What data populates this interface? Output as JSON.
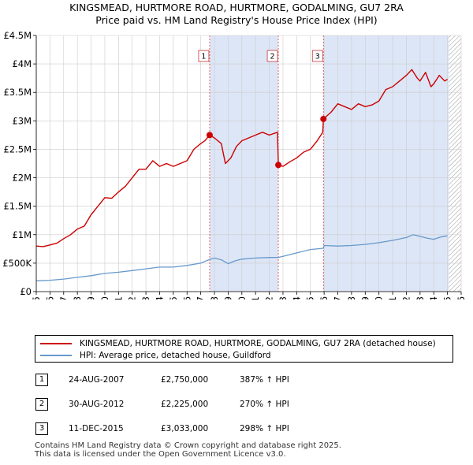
{
  "title": "KINGSMEAD, HURTMORE ROAD, HURTMORE, GODALMING, GU7 2RA",
  "subtitle": "Price paid vs. HM Land Registry's House Price Index (HPI)",
  "legend": {
    "property_label": "KINGSMEAD, HURTMORE ROAD, HURTMORE, GODALMING, GU7 2RA (detached house)",
    "hpi_label": "HPI: Average price, detached house, Guildford"
  },
  "sales": [
    {
      "num": "1",
      "date": "24-AUG-2007",
      "price": "£2,750,000",
      "hpi": "387% ↑ HPI"
    },
    {
      "num": "2",
      "date": "30-AUG-2012",
      "price": "£2,225,000",
      "hpi": "270% ↑ HPI"
    },
    {
      "num": "3",
      "date": "11-DEC-2015",
      "price": "£3,033,000",
      "hpi": "298% ↑ HPI"
    }
  ],
  "footer": {
    "line1": "Contains HM Land Registry data © Crown copyright and database right 2025.",
    "line2": "This data is licensed under the Open Government Licence v3.0."
  },
  "colors": {
    "property": "#cc0000",
    "hpi": "#6699cc",
    "shade": "#dde6f6",
    "grid": "#cccccc",
    "hatch": "#999999"
  },
  "chart_data": {
    "type": "line",
    "xlim": [
      1995,
      2026
    ],
    "ylim": [
      0,
      4500000
    ],
    "x_ticks": [
      1995,
      1996,
      1997,
      1998,
      1999,
      2000,
      2001,
      2002,
      2003,
      2004,
      2005,
      2006,
      2007,
      2008,
      2009,
      2010,
      2011,
      2012,
      2013,
      2014,
      2015,
      2016,
      2017,
      2018,
      2019,
      2020,
      2021,
      2022,
      2023,
      2024,
      2025,
      2026
    ],
    "x_tick_labels": [
      "1995",
      "1996",
      "1997",
      "1998",
      "1999",
      "2000",
      "2001",
      "2002",
      "2003",
      "2004",
      "2005",
      "2006",
      "2007",
      "2008",
      "2009",
      "2010",
      "2011",
      "2012",
      "2013",
      "2014",
      "2015",
      "2016",
      "2017",
      "2018",
      "2019",
      "2020",
      "2021",
      "2022",
      "2023",
      "2024",
      "2025",
      "2026"
    ],
    "y_ticks": [
      0,
      500000,
      1000000,
      1500000,
      2000000,
      2500000,
      3000000,
      3500000,
      4000000,
      4500000
    ],
    "y_tick_labels": [
      "£0",
      "£500K",
      "£1M",
      "£1.5M",
      "£2M",
      "£2.5M",
      "£3M",
      "£3.5M",
      "£4M",
      "£4.5M"
    ],
    "shaded_ranges": [
      [
        2007.65,
        2012.66
      ],
      [
        2015.95,
        2025.1
      ]
    ],
    "hatch_from": 2025.1,
    "sale_markers": [
      {
        "label": "1",
        "x": 2007.65,
        "y": 2750000
      },
      {
        "label": "2",
        "x": 2012.66,
        "y": 2225000
      },
      {
        "label": "3",
        "x": 2015.95,
        "y": 3033000
      }
    ],
    "series": [
      {
        "name": "KINGSMEAD, HURTMORE ROAD, HURTMORE, GODALMING, GU7 2RA (detached house)",
        "x": [
          1995,
          1995.5,
          1996,
          1996.5,
          1997,
          1997.5,
          1998,
          1998.5,
          1999,
          1999.5,
          2000,
          2000.5,
          2001,
          2001.5,
          2002,
          2002.5,
          2003,
          2003.5,
          2004,
          2004.5,
          2005,
          2005.5,
          2006,
          2006.5,
          2007,
          2007.3,
          2007.65,
          2008,
          2008.5,
          2008.8,
          2009.2,
          2009.6,
          2010,
          2010.5,
          2011,
          2011.5,
          2012,
          2012.6,
          2012.66,
          2013,
          2013.5,
          2014,
          2014.5,
          2015,
          2015.5,
          2015.9,
          2015.95,
          2016.5,
          2017,
          2017.5,
          2018,
          2018.5,
          2019,
          2019.5,
          2020,
          2020.5,
          2021,
          2021.5,
          2022,
          2022.4,
          2022.8,
          2023,
          2023.4,
          2023.8,
          2024,
          2024.4,
          2024.8,
          2025
        ],
        "y": [
          800000,
          790000,
          820000,
          850000,
          930000,
          1000000,
          1100000,
          1150000,
          1350000,
          1500000,
          1650000,
          1640000,
          1750000,
          1850000,
          2000000,
          2150000,
          2150000,
          2300000,
          2200000,
          2250000,
          2200000,
          2250000,
          2300000,
          2500000,
          2600000,
          2650000,
          2750000,
          2700000,
          2600000,
          2250000,
          2350000,
          2550000,
          2650000,
          2700000,
          2750000,
          2800000,
          2750000,
          2800000,
          2225000,
          2200000,
          2280000,
          2350000,
          2450000,
          2500000,
          2650000,
          2800000,
          3033000,
          3150000,
          3300000,
          3250000,
          3200000,
          3300000,
          3250000,
          3280000,
          3350000,
          3550000,
          3600000,
          3700000,
          3800000,
          3900000,
          3750000,
          3700000,
          3850000,
          3600000,
          3650000,
          3800000,
          3700000,
          3730000
        ]
      },
      {
        "name": "HPI: Average price, detached house, Guildford",
        "x": [
          1995,
          1996,
          1997,
          1998,
          1999,
          2000,
          2001,
          2002,
          2003,
          2004,
          2005,
          2006,
          2007,
          2007.65,
          2008,
          2008.5,
          2009,
          2009.5,
          2010,
          2011,
          2012,
          2012.66,
          2013,
          2014,
          2015,
          2015.95,
          2016,
          2017,
          2018,
          2019,
          2020,
          2021,
          2022,
          2022.5,
          2023,
          2023.5,
          2024,
          2024.5,
          2025
        ],
        "y": [
          190000,
          200000,
          220000,
          250000,
          280000,
          320000,
          340000,
          370000,
          400000,
          430000,
          430000,
          460000,
          500000,
          565000,
          590000,
          560000,
          490000,
          540000,
          570000,
          590000,
          600000,
          601000,
          620000,
          680000,
          740000,
          762000,
          810000,
          800000,
          810000,
          830000,
          860000,
          900000,
          950000,
          1000000,
          970000,
          940000,
          920000,
          960000,
          980000
        ]
      }
    ]
  }
}
